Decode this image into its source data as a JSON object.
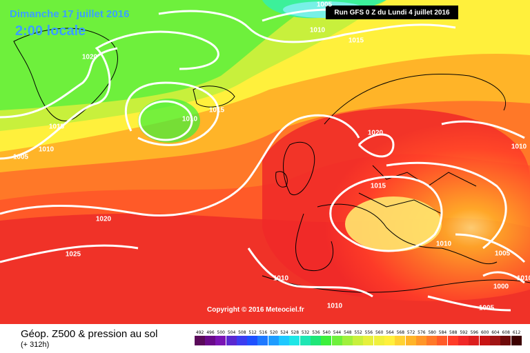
{
  "map": {
    "date_label": "Dimanche 17 juillet 2016",
    "time_label": "2:00 locale",
    "run_label": "Run GFS 0 Z du Lundi 4 juillet 2016",
    "copyright": "Copyright © 2016 Meteociel.fr",
    "isobar_labels": [
      {
        "value": "1005"
      },
      {
        "value": "1010"
      },
      {
        "value": "1015"
      },
      {
        "value": "1020"
      },
      {
        "value": "1010"
      },
      {
        "value": "1015"
      },
      {
        "value": "1015"
      },
      {
        "value": "1010"
      },
      {
        "value": "1005"
      },
      {
        "value": "1020"
      },
      {
        "value": "1025"
      },
      {
        "value": "1020"
      },
      {
        "value": "1015"
      },
      {
        "value": "1010"
      },
      {
        "value": "1010"
      },
      {
        "value": "1010"
      },
      {
        "value": "1010"
      },
      {
        "value": "1005"
      },
      {
        "value": "1000"
      },
      {
        "value": "1005"
      },
      {
        "value": "1010"
      }
    ]
  },
  "legend": {
    "title": "Géop. Z500 & pression au sol",
    "subtitle": "(+ 312h)",
    "scale_values": [
      "492",
      "496",
      "500",
      "504",
      "508",
      "512",
      "516",
      "520",
      "524",
      "528",
      "532",
      "536",
      "540",
      "544",
      "548",
      "552",
      "556",
      "560",
      "564",
      "568",
      "572",
      "576",
      "580",
      "584",
      "588",
      "592",
      "596",
      "600",
      "604",
      "608",
      "612"
    ],
    "scale_colors": [
      "#5a0a5a",
      "#6a0a8a",
      "#7a14b4",
      "#5a28d0",
      "#3c3cf0",
      "#1e50ff",
      "#1e78ff",
      "#1e9cff",
      "#1ec8ff",
      "#1ee6e6",
      "#1ee6b4",
      "#1ee678",
      "#3cf03c",
      "#6ef03c",
      "#a0f03c",
      "#c8f03c",
      "#e6f03c",
      "#f0f03c",
      "#fff03c",
      "#ffd232",
      "#ffb428",
      "#ff9628",
      "#ff7828",
      "#ff5a28",
      "#ff3c28",
      "#f02828",
      "#dc1e1e",
      "#c81414",
      "#a01414",
      "#6e0a0a",
      "#3c0000"
    ]
  }
}
